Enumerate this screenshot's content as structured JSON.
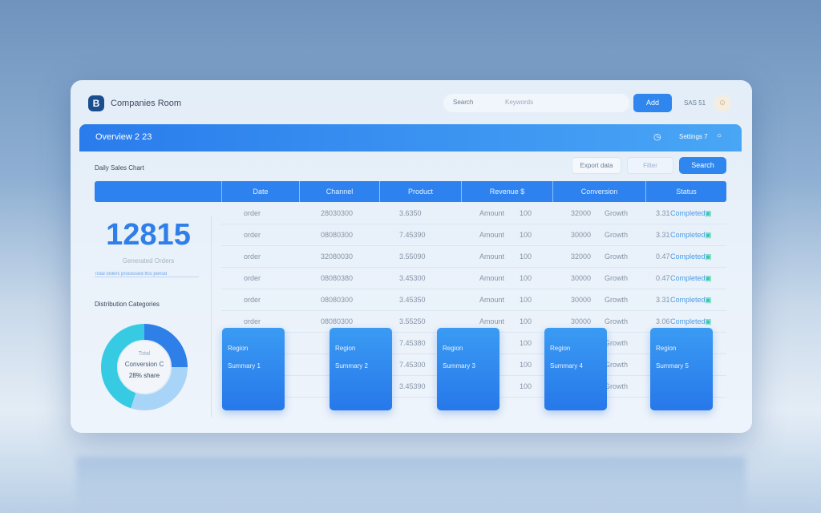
{
  "app": {
    "title": "Companies Room",
    "logo": "B"
  },
  "topbar": {
    "search_label": "Search",
    "search_placeholder": "Keywords",
    "button": "Add",
    "user": "SAS 51",
    "avatar_icon": "user-avatar"
  },
  "band": {
    "title": "Overview 2  23",
    "status": "Settings 7",
    "icons": [
      "calendar-icon",
      "info-icon"
    ]
  },
  "toolbar": {
    "title": "Daily Sales Chart",
    "buttons": [
      "Export data",
      "Filter",
      "Search"
    ]
  },
  "table": {
    "columns": [
      "",
      "Date",
      "Channel",
      "Product",
      "Revenue $",
      "Conversion",
      "Status"
    ],
    "rows": [
      [
        "order",
        "28030300",
        "3.6350",
        "Amount",
        "100",
        "32000",
        "Growth",
        "3.31",
        "Completed"
      ],
      [
        "order",
        "08080300",
        "7.45390",
        "Amount",
        "100",
        "30000",
        "Growth",
        "3.31",
        "Completed"
      ],
      [
        "order",
        "32080030",
        "3.55090",
        "Amount",
        "100",
        "32000",
        "Growth",
        "0.47",
        "Completed"
      ],
      [
        "order",
        "08080380",
        "3.45300",
        "Amount",
        "100",
        "30000",
        "Growth",
        "0.47",
        "Completed"
      ],
      [
        "order",
        "08080300",
        "3.45350",
        "Amount",
        "100",
        "30000",
        "Growth",
        "3.31",
        "Completed"
      ],
      [
        "order",
        "08080300",
        "3.55250",
        "Amount",
        "100",
        "30000",
        "Growth",
        "3.06",
        "Completed"
      ],
      [
        "",
        "",
        "7.45380",
        "",
        "100",
        "",
        "Growth",
        "",
        ""
      ],
      [
        "",
        "",
        "7.45300",
        "",
        "100",
        "",
        "Growth",
        "",
        ""
      ],
      [
        "",
        "",
        "3.45390",
        "",
        "100",
        "",
        "Growth",
        "",
        ""
      ]
    ]
  },
  "left": {
    "kpi": "12815",
    "kpi_label": "Generated Orders",
    "kpi_sub": "Total orders processed this period",
    "section": "Distribution Categories",
    "donut": {
      "top": "Total",
      "middle": "Conversion C",
      "bottom": "28% share",
      "segments": [
        {
          "value": 25,
          "color": "#2f7fe9"
        },
        {
          "value": 30,
          "color": "#a8d4f7"
        },
        {
          "value": 45,
          "color": "#36cbe3"
        }
      ]
    }
  },
  "cards": [
    {
      "title": "Region",
      "sub": "Summary 1"
    },
    {
      "title": "Region",
      "sub": "Summary 2"
    },
    {
      "title": "Region",
      "sub": "Summary 3"
    },
    {
      "title": "Region",
      "sub": "Summary 4"
    },
    {
      "title": "Region",
      "sub": "Summary 5"
    }
  ]
}
